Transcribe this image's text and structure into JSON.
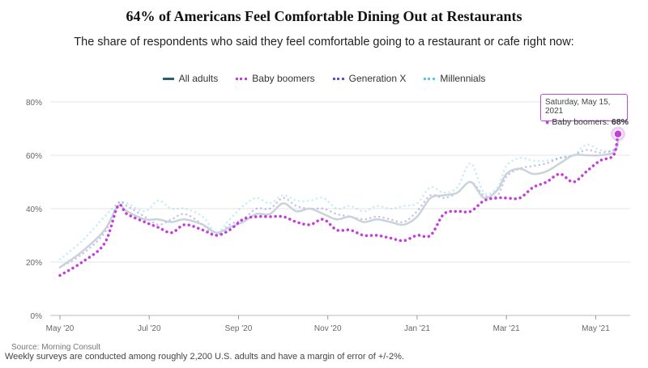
{
  "chart_data": {
    "type": "line",
    "title": "64% of Americans Feel Comfortable Dining Out at Restaurants",
    "subtitle": "The share of respondents who said they feel comfortable going to a restaurant or cafe right now:",
    "ylim": [
      0,
      80
    ],
    "yticks": [
      0,
      20,
      40,
      60,
      80
    ],
    "ytick_labels": [
      "0%",
      "20%",
      "40%",
      "60%",
      "80%"
    ],
    "xlim": [
      0,
      12.7
    ],
    "xticks": [
      0,
      2,
      4,
      6,
      8,
      10,
      12
    ],
    "xtick_labels": [
      "May '20",
      "Jul '20",
      "Sep '20",
      "Nov '20",
      "Jan '21",
      "Mar '21",
      "May '21"
    ],
    "x": [
      0,
      0.5,
      1,
      1.3,
      1.5,
      1.9,
      2.2,
      2.5,
      2.8,
      3.2,
      3.5,
      3.8,
      4.1,
      4.4,
      4.7,
      5.0,
      5.3,
      5.6,
      5.9,
      6.2,
      6.5,
      6.8,
      7.1,
      7.4,
      7.7,
      8.0,
      8.3,
      8.6,
      8.9,
      9.2,
      9.5,
      9.8,
      10.0,
      10.3,
      10.6,
      10.9,
      11.2,
      11.5,
      11.8,
      12.1,
      12.4,
      12.5
    ],
    "series": [
      {
        "name": "All adults",
        "color": "#2e5f6e",
        "style": "solid",
        "values": [
          18,
          24,
          32,
          41,
          39,
          36,
          36,
          35,
          36,
          34,
          31,
          33,
          35,
          38,
          38,
          42,
          39,
          40,
          38,
          36,
          37,
          35,
          36,
          35,
          34,
          37,
          44,
          45,
          46,
          50,
          44,
          47,
          53,
          55,
          53,
          54,
          57,
          60,
          60,
          60,
          61,
          64
        ]
      },
      {
        "name": "Baby boomers",
        "color": "#c43fd9",
        "style": "dotted",
        "values": [
          15,
          20,
          27,
          41,
          38,
          35,
          33,
          31,
          34,
          32,
          30,
          32,
          36,
          37,
          37,
          37,
          35,
          34,
          36,
          32,
          32,
          30,
          30,
          29,
          28,
          30,
          30,
          38,
          39,
          39,
          43,
          44,
          44,
          44,
          48,
          50,
          53,
          50,
          54,
          58,
          60,
          68
        ]
      },
      {
        "name": "Generation X",
        "color": "#5a4fcf",
        "style": "dotted",
        "values": [
          18,
          23,
          31,
          42,
          41,
          37,
          34,
          36,
          38,
          34,
          30,
          34,
          36,
          40,
          40,
          44,
          41,
          40,
          40,
          38,
          37,
          36,
          37,
          36,
          35,
          39,
          45,
          44,
          46,
          50,
          45,
          45,
          52,
          55,
          56,
          57,
          59,
          60,
          62,
          61,
          62,
          65
        ]
      },
      {
        "name": "Millennials",
        "color": "#5bc8e8",
        "style": "dotted",
        "values": [
          21,
          28,
          37,
          42,
          42,
          39,
          43,
          40,
          40,
          37,
          31,
          36,
          41,
          44,
          42,
          45,
          43,
          43,
          44,
          40,
          41,
          39,
          41,
          40,
          41,
          42,
          48,
          46,
          48,
          57,
          46,
          48,
          56,
          59,
          58,
          58,
          59,
          60,
          64,
          62,
          62,
          66
        ]
      }
    ],
    "tooltip": {
      "date": "Saturday, May 15, 2021",
      "series": "Baby boomers",
      "label": "Baby boomers: ",
      "value": "68%"
    }
  },
  "source": "Source: Morning Consult",
  "footnote": "Weekly surveys are conducted among roughly 2,200 U.S. adults and have a margin of error of +/-2%."
}
